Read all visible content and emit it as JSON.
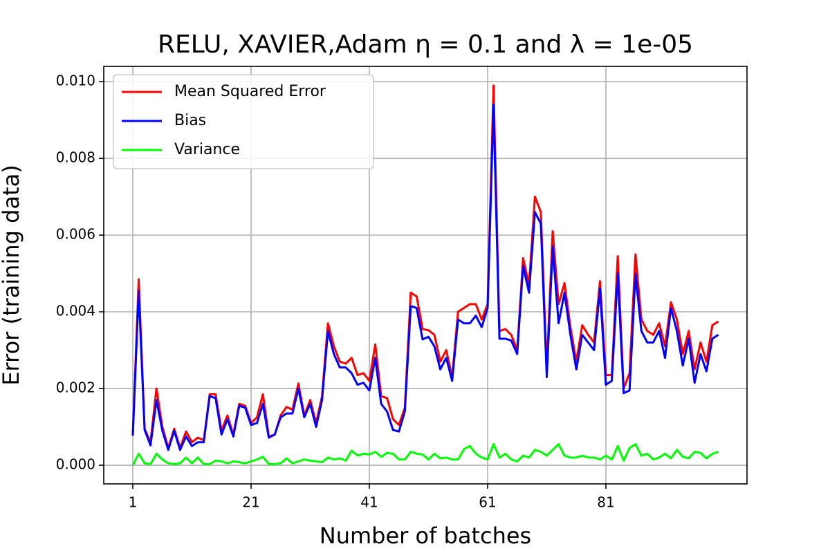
{
  "chart_data": {
    "type": "line",
    "title": "RELU, XAVIER,Adam η = 0.1 and λ = 1e-05",
    "x_label": "Number of batches",
    "y_label": "Error (training data)",
    "x": [
      1,
      2,
      3,
      4,
      5,
      6,
      7,
      8,
      9,
      10,
      11,
      12,
      13,
      14,
      15,
      16,
      17,
      18,
      19,
      20,
      21,
      22,
      23,
      24,
      25,
      26,
      27,
      28,
      29,
      30,
      31,
      32,
      33,
      34,
      35,
      36,
      37,
      38,
      39,
      40,
      41,
      42,
      43,
      44,
      45,
      46,
      47,
      48,
      49,
      50,
      51,
      52,
      53,
      54,
      55,
      56,
      57,
      58,
      59,
      60,
      61,
      62,
      63,
      64,
      65,
      66,
      67,
      68,
      69,
      70,
      71,
      72,
      73,
      74,
      75,
      76,
      77,
      78,
      79,
      80,
      81,
      82,
      83,
      84,
      85,
      86,
      87,
      88,
      89,
      90,
      91,
      92,
      93,
      94,
      95,
      96,
      97,
      98,
      99,
      100
    ],
    "series": [
      {
        "name": "Mean Squared Error",
        "color": "#ff0000",
        "values": [
          0.00077,
          0.00485,
          0.00095,
          0.0006,
          0.002,
          0.001,
          0.00045,
          0.00095,
          0.00045,
          0.00088,
          0.0006,
          0.00072,
          0.00065,
          0.00185,
          0.00185,
          0.0009,
          0.0013,
          0.0008,
          0.0016,
          0.00155,
          0.0011,
          0.00125,
          0.00185,
          0.00075,
          0.0008,
          0.0013,
          0.00152,
          0.00145,
          0.00213,
          0.0013,
          0.0017,
          0.0011,
          0.0018,
          0.0037,
          0.0031,
          0.0027,
          0.00265,
          0.0028,
          0.00235,
          0.0024,
          0.0022,
          0.00315,
          0.0018,
          0.00175,
          0.0012,
          0.00105,
          0.0015,
          0.0045,
          0.0044,
          0.00355,
          0.00352,
          0.0034,
          0.0027,
          0.003,
          0.0023,
          0.004,
          0.0041,
          0.0042,
          0.0042,
          0.0038,
          0.0042,
          0.0099,
          0.0035,
          0.00355,
          0.0034,
          0.003,
          0.0054,
          0.0047,
          0.007,
          0.0066,
          0.0025,
          0.0061,
          0.0042,
          0.00475,
          0.0036,
          0.0027,
          0.00365,
          0.0034,
          0.0032,
          0.0048,
          0.00235,
          0.00235,
          0.00545,
          0.002,
          0.0024,
          0.0055,
          0.0038,
          0.0035,
          0.0034,
          0.0037,
          0.0031,
          0.00425,
          0.0038,
          0.0029,
          0.0035,
          0.0025,
          0.0032,
          0.0027,
          0.00365,
          0.00375
        ]
      },
      {
        "name": "Bias",
        "color": "#0000ff",
        "values": [
          0.00077,
          0.00455,
          0.00092,
          0.00052,
          0.0017,
          0.0009,
          0.0004,
          0.0009,
          0.0004,
          0.00075,
          0.0005,
          0.0006,
          0.0006,
          0.0018,
          0.00175,
          0.0008,
          0.0012,
          0.00075,
          0.00155,
          0.0015,
          0.00105,
          0.0011,
          0.0016,
          0.00072,
          0.0008,
          0.00125,
          0.00135,
          0.00135,
          0.002,
          0.00125,
          0.0016,
          0.001,
          0.0017,
          0.0035,
          0.0029,
          0.00255,
          0.00255,
          0.0024,
          0.0021,
          0.00215,
          0.00195,
          0.0028,
          0.0016,
          0.0014,
          0.00092,
          0.00088,
          0.0014,
          0.00415,
          0.0041,
          0.00328,
          0.00335,
          0.0031,
          0.0025,
          0.0028,
          0.0022,
          0.0038,
          0.0037,
          0.0037,
          0.0039,
          0.0036,
          0.0041,
          0.0094,
          0.0033,
          0.0033,
          0.00325,
          0.0029,
          0.0052,
          0.0045,
          0.0066,
          0.0063,
          0.0023,
          0.0057,
          0.0037,
          0.0045,
          0.0034,
          0.0025,
          0.0034,
          0.0032,
          0.003,
          0.0046,
          0.0021,
          0.0022,
          0.005,
          0.00188,
          0.00195,
          0.005,
          0.0035,
          0.0032,
          0.0032,
          0.0035,
          0.0028,
          0.0041,
          0.0035,
          0.0026,
          0.0033,
          0.00215,
          0.0029,
          0.00245,
          0.0033,
          0.0034
        ]
      },
      {
        "name": "Variance",
        "color": "#00ff00",
        "values": [
          0.0,
          0.0003,
          5e-05,
          3e-05,
          0.0003,
          0.00015,
          5e-05,
          3e-05,
          5e-05,
          0.0002,
          5e-05,
          0.0002,
          3e-05,
          3e-05,
          0.00012,
          0.0001,
          5e-05,
          0.0001,
          8e-05,
          5e-05,
          0.0001,
          0.00015,
          0.00022,
          3e-05,
          3e-05,
          5e-05,
          0.00018,
          5e-05,
          0.0001,
          0.00015,
          0.00012,
          0.0001,
          8e-05,
          0.0002,
          0.00015,
          0.00018,
          0.00012,
          0.00038,
          0.00025,
          0.0003,
          0.00028,
          0.00035,
          0.00022,
          0.00032,
          0.0003,
          0.00015,
          0.00015,
          0.00035,
          0.0003,
          0.00028,
          0.00015,
          0.0003,
          0.00018,
          0.0002,
          0.00015,
          0.00015,
          0.00042,
          0.0005,
          0.0003,
          0.0002,
          0.00015,
          0.00055,
          0.0002,
          0.0003,
          0.00015,
          0.0001,
          0.00025,
          0.0002,
          0.0004,
          0.00035,
          0.00025,
          0.0004,
          0.00055,
          0.00025,
          0.0002,
          0.0002,
          0.00025,
          0.0002,
          0.0002,
          0.00015,
          0.00025,
          0.00015,
          0.0005,
          0.00012,
          0.00045,
          0.00055,
          0.00025,
          0.0003,
          0.00015,
          0.0002,
          0.0003,
          0.00018,
          0.0004,
          0.00022,
          0.00018,
          0.00035,
          0.00032,
          0.00018,
          0.0003,
          0.00035
        ]
      }
    ],
    "xlim": [
      -3.91,
      104.86
    ],
    "ylim": [
      -0.000486,
      0.0104
    ],
    "xticks": [
      1,
      21,
      41,
      61,
      81
    ],
    "yticks": [
      {
        "value": 0,
        "label": "0.000"
      },
      {
        "value": 0.002,
        "label": "0.002"
      },
      {
        "value": 0.004,
        "label": "0.004"
      },
      {
        "value": 0.006,
        "label": "0.006"
      },
      {
        "value": 0.008,
        "label": "0.008"
      },
      {
        "value": 0.01,
        "label": "0.010"
      }
    ],
    "grid": true,
    "legend": "upper-left"
  }
}
